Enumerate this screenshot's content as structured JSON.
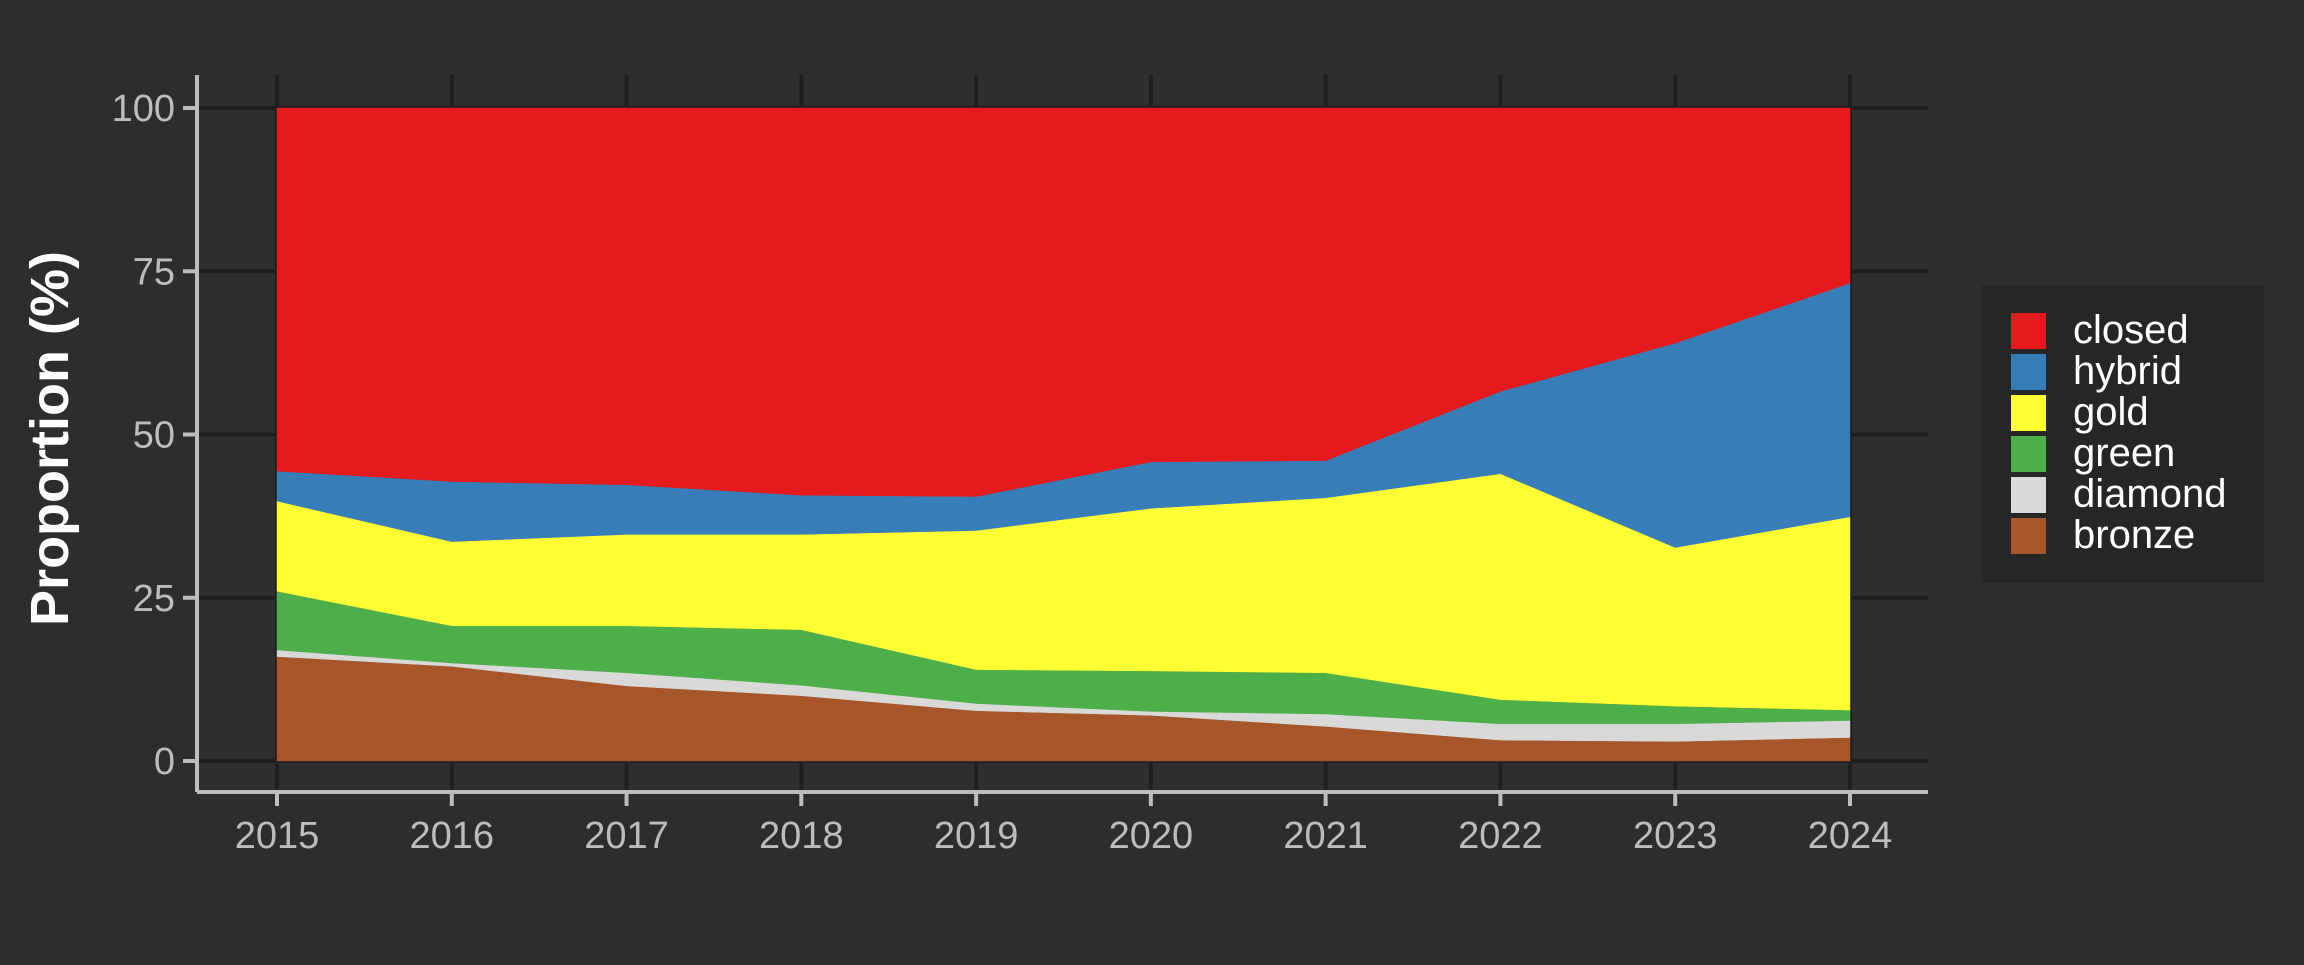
{
  "chart_data": {
    "type": "area",
    "stacked": true,
    "title": "",
    "xlabel": "",
    "ylabel": "Proportion (%)",
    "x": [
      2015,
      2016,
      2017,
      2018,
      2019,
      2020,
      2021,
      2022,
      2023,
      2024
    ],
    "xticks": [
      "2015",
      "2016",
      "2017",
      "2018",
      "2019",
      "2020",
      "2021",
      "2022",
      "2023",
      "2024"
    ],
    "yticks": [
      "0",
      "25",
      "50",
      "75",
      "100"
    ],
    "ylim": [
      0,
      100
    ],
    "grid": true,
    "legend_position": "right",
    "series": [
      {
        "name": "bronze",
        "color": "#A65628",
        "values": [
          16.0,
          14.5,
          11.5,
          10.0,
          7.7,
          7.0,
          5.3,
          3.2,
          3.0,
          3.6
        ]
      },
      {
        "name": "diamond",
        "color": "#D9D9D9",
        "values": [
          1.0,
          0.5,
          2.0,
          1.6,
          1.1,
          0.6,
          1.9,
          2.5,
          2.7,
          2.6
        ]
      },
      {
        "name": "green",
        "color": "#4DAF4A",
        "values": [
          9.0,
          5.7,
          7.2,
          8.5,
          5.2,
          6.2,
          6.3,
          3.7,
          2.7,
          1.6
        ]
      },
      {
        "name": "gold",
        "color": "#FFFF33",
        "values": [
          13.8,
          12.9,
          14.0,
          14.6,
          21.3,
          24.9,
          26.8,
          34.6,
          24.3,
          29.6
        ]
      },
      {
        "name": "hybrid",
        "color": "#377EB8",
        "values": [
          4.6,
          9.2,
          7.6,
          6.0,
          5.2,
          7.1,
          5.7,
          12.6,
          31.3,
          35.8
        ]
      },
      {
        "name": "closed",
        "color": "#E41A1C",
        "values": [
          55.6,
          57.2,
          57.7,
          59.3,
          59.5,
          54.2,
          54.0,
          43.4,
          36.0,
          26.8
        ]
      }
    ],
    "legend_order": [
      "closed",
      "hybrid",
      "gold",
      "green",
      "diamond",
      "bronze"
    ]
  }
}
